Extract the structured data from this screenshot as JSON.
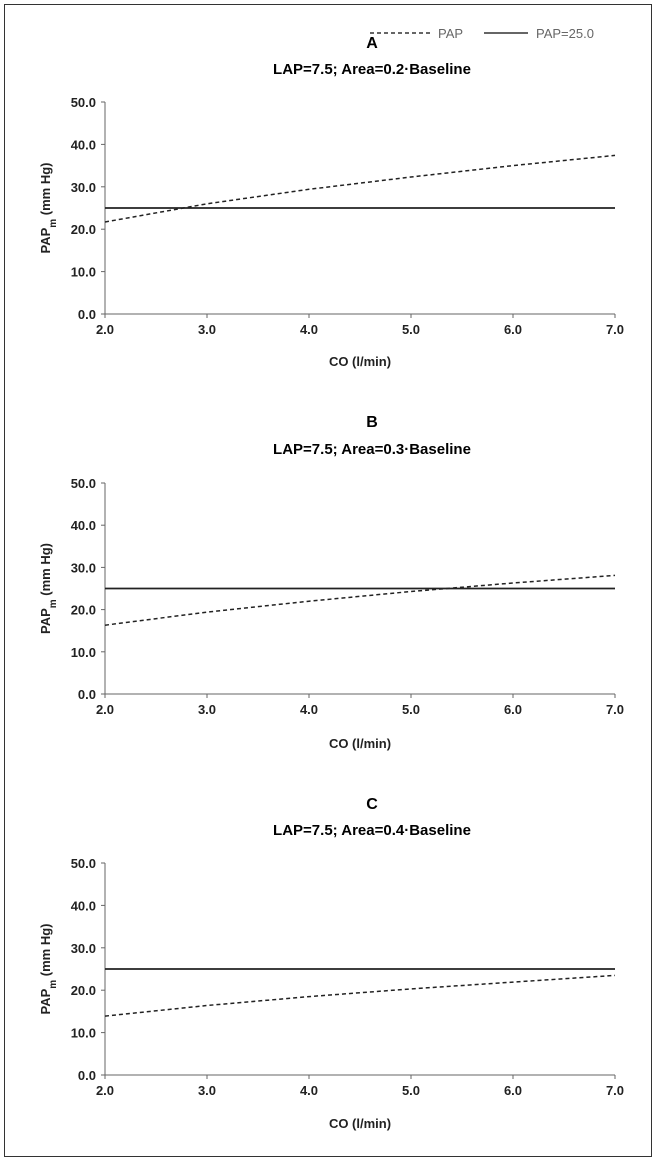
{
  "legend": {
    "items": [
      {
        "label": "PAP",
        "style": "dashed"
      },
      {
        "label": "PAP=25.0",
        "style": "solid"
      }
    ],
    "placement": "top-right"
  },
  "chart_data": [
    {
      "type": "line",
      "panel": "A",
      "title": "LAP=7.5; Area=0.2·Baseline",
      "xlabel": "CO (l/min)",
      "ylabel_main": "PAP",
      "ylabel_sub": "m",
      "ylabel_unit": " (mm Hg)",
      "xlim": [
        2.0,
        7.0
      ],
      "ylim": [
        0.0,
        50.0
      ],
      "x_ticks": [
        "2.0",
        "3.0",
        "4.0",
        "5.0",
        "6.0",
        "7.0"
      ],
      "y_ticks": [
        "0.0",
        "10.0",
        "20.0",
        "30.0",
        "40.0",
        "50.0"
      ],
      "grid": false,
      "series": [
        {
          "name": "PAP",
          "style": "dashed",
          "x": [
            2.0,
            3.0,
            4.0,
            5.0,
            6.0,
            7.0
          ],
          "y": [
            21.7,
            26.0,
            29.4,
            32.3,
            35.0,
            37.4
          ]
        },
        {
          "name": "PAP=25.0",
          "style": "solid",
          "x": [
            2.0,
            7.0
          ],
          "y": [
            25.0,
            25.0
          ]
        }
      ]
    },
    {
      "type": "line",
      "panel": "B",
      "title": "LAP=7.5; Area=0.3·Baseline",
      "xlabel": "CO (l/min)",
      "ylabel_main": "PAP",
      "ylabel_sub": "m",
      "ylabel_unit": " (mm Hg)",
      "xlim": [
        2.0,
        7.0
      ],
      "ylim": [
        0.0,
        50.0
      ],
      "x_ticks": [
        "2.0",
        "3.0",
        "4.0",
        "5.0",
        "6.0",
        "7.0"
      ],
      "y_ticks": [
        "0.0",
        "10.0",
        "20.0",
        "30.0",
        "40.0",
        "50.0"
      ],
      "grid": false,
      "series": [
        {
          "name": "PAP",
          "style": "dashed",
          "x": [
            2.0,
            3.0,
            4.0,
            5.0,
            6.0,
            7.0
          ],
          "y": [
            16.3,
            19.4,
            22.0,
            24.3,
            26.3,
            28.1
          ]
        },
        {
          "name": "PAP=25.0",
          "style": "solid",
          "x": [
            2.0,
            7.0
          ],
          "y": [
            25.0,
            25.0
          ]
        }
      ]
    },
    {
      "type": "line",
      "panel": "C",
      "title": "LAP=7.5; Area=0.4·Baseline",
      "xlabel": "CO (l/min)",
      "ylabel_main": "PAP",
      "ylabel_sub": "m",
      "ylabel_unit": " (mm Hg)",
      "xlim": [
        2.0,
        7.0
      ],
      "ylim": [
        0.0,
        50.0
      ],
      "x_ticks": [
        "2.0",
        "3.0",
        "4.0",
        "5.0",
        "6.0",
        "7.0"
      ],
      "y_ticks": [
        "0.0",
        "10.0",
        "20.0",
        "30.0",
        "40.0",
        "50.0"
      ],
      "grid": false,
      "series": [
        {
          "name": "PAP",
          "style": "dashed",
          "x": [
            2.0,
            3.0,
            4.0,
            5.0,
            6.0,
            7.0
          ],
          "y": [
            13.9,
            16.4,
            18.5,
            20.3,
            21.9,
            23.5
          ]
        },
        {
          "name": "PAP=25.0",
          "style": "solid",
          "x": [
            2.0,
            7.0
          ],
          "y": [
            25.0,
            25.0
          ]
        }
      ]
    }
  ]
}
